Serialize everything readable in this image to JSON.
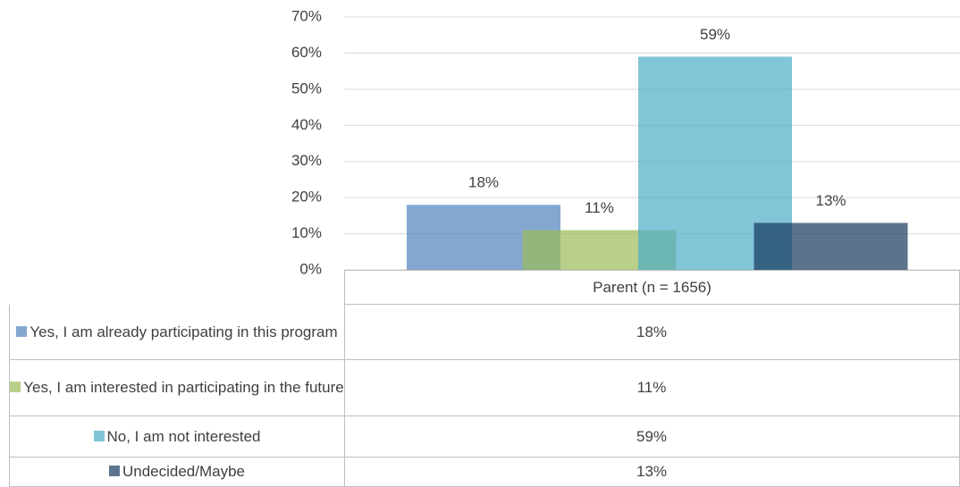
{
  "chart_data": {
    "type": "bar",
    "categories": [
      "Parent (n = 1656)"
    ],
    "series": [
      {
        "name": "Yes, I am already participating in this program",
        "color": "#4f81bd",
        "values": [
          18
        ],
        "value_labels": [
          "18%"
        ]
      },
      {
        "name": "Yes, I am interested in participating in the future",
        "color": "#9bbb59",
        "values": [
          11
        ],
        "value_labels": [
          "11%"
        ]
      },
      {
        "name": "No, I am not interested",
        "color": "#4bacc6",
        "values": [
          59
        ],
        "value_labels": [
          "59%"
        ]
      },
      {
        "name": "Undecided/Maybe",
        "color": "#17375e",
        "values": [
          13
        ],
        "value_labels": [
          "13%"
        ]
      }
    ],
    "ylim": [
      0,
      70
    ],
    "yticks": [
      {
        "value": 0,
        "label": "0%"
      },
      {
        "value": 10,
        "label": "10%"
      },
      {
        "value": 20,
        "label": "20%"
      },
      {
        "value": 30,
        "label": "30%"
      },
      {
        "value": 40,
        "label": "40%"
      },
      {
        "value": 50,
        "label": "50%"
      },
      {
        "value": 60,
        "label": "60%"
      },
      {
        "value": 70,
        "label": "70%"
      }
    ],
    "grid": true,
    "opacity": 0.7
  }
}
